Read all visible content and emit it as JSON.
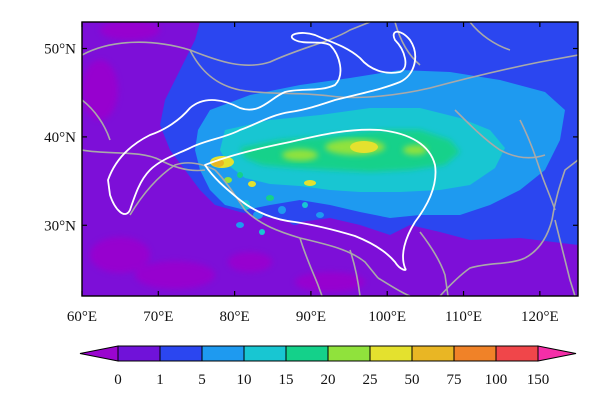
{
  "map": {
    "y_ticks": [
      {
        "lat": 50,
        "label": "50°N"
      },
      {
        "lat": 40,
        "label": "40°N"
      },
      {
        "lat": 30,
        "label": "30°N"
      }
    ],
    "x_ticks": [
      {
        "lon": 60,
        "label": "60°E"
      },
      {
        "lon": 70,
        "label": "70°E"
      },
      {
        "lon": 80,
        "label": "80°E"
      },
      {
        "lon": 90,
        "label": "90°E"
      },
      {
        "lon": 100,
        "label": "100°E"
      },
      {
        "lon": 110,
        "label": "110°E"
      },
      {
        "lon": 120,
        "label": "120°E"
      }
    ],
    "lon_range": [
      60,
      125
    ],
    "lat_range": [
      22,
      53
    ],
    "colors": {
      "background_field": "#7d0fd8",
      "border_lines": "#a9a9a9",
      "outline": "#ffffff"
    }
  },
  "colorbar": {
    "labels": [
      "0",
      "1",
      "5",
      "10",
      "15",
      "20",
      "25",
      "50",
      "75",
      "100",
      "150"
    ],
    "colors": [
      "#9a05cf",
      "#7012d9",
      "#2b46f0",
      "#1e9af0",
      "#18c6d2",
      "#14d18a",
      "#90e23c",
      "#e4e12e",
      "#e9b624",
      "#f08228",
      "#f0464a",
      "#f42ea8"
    ]
  }
}
